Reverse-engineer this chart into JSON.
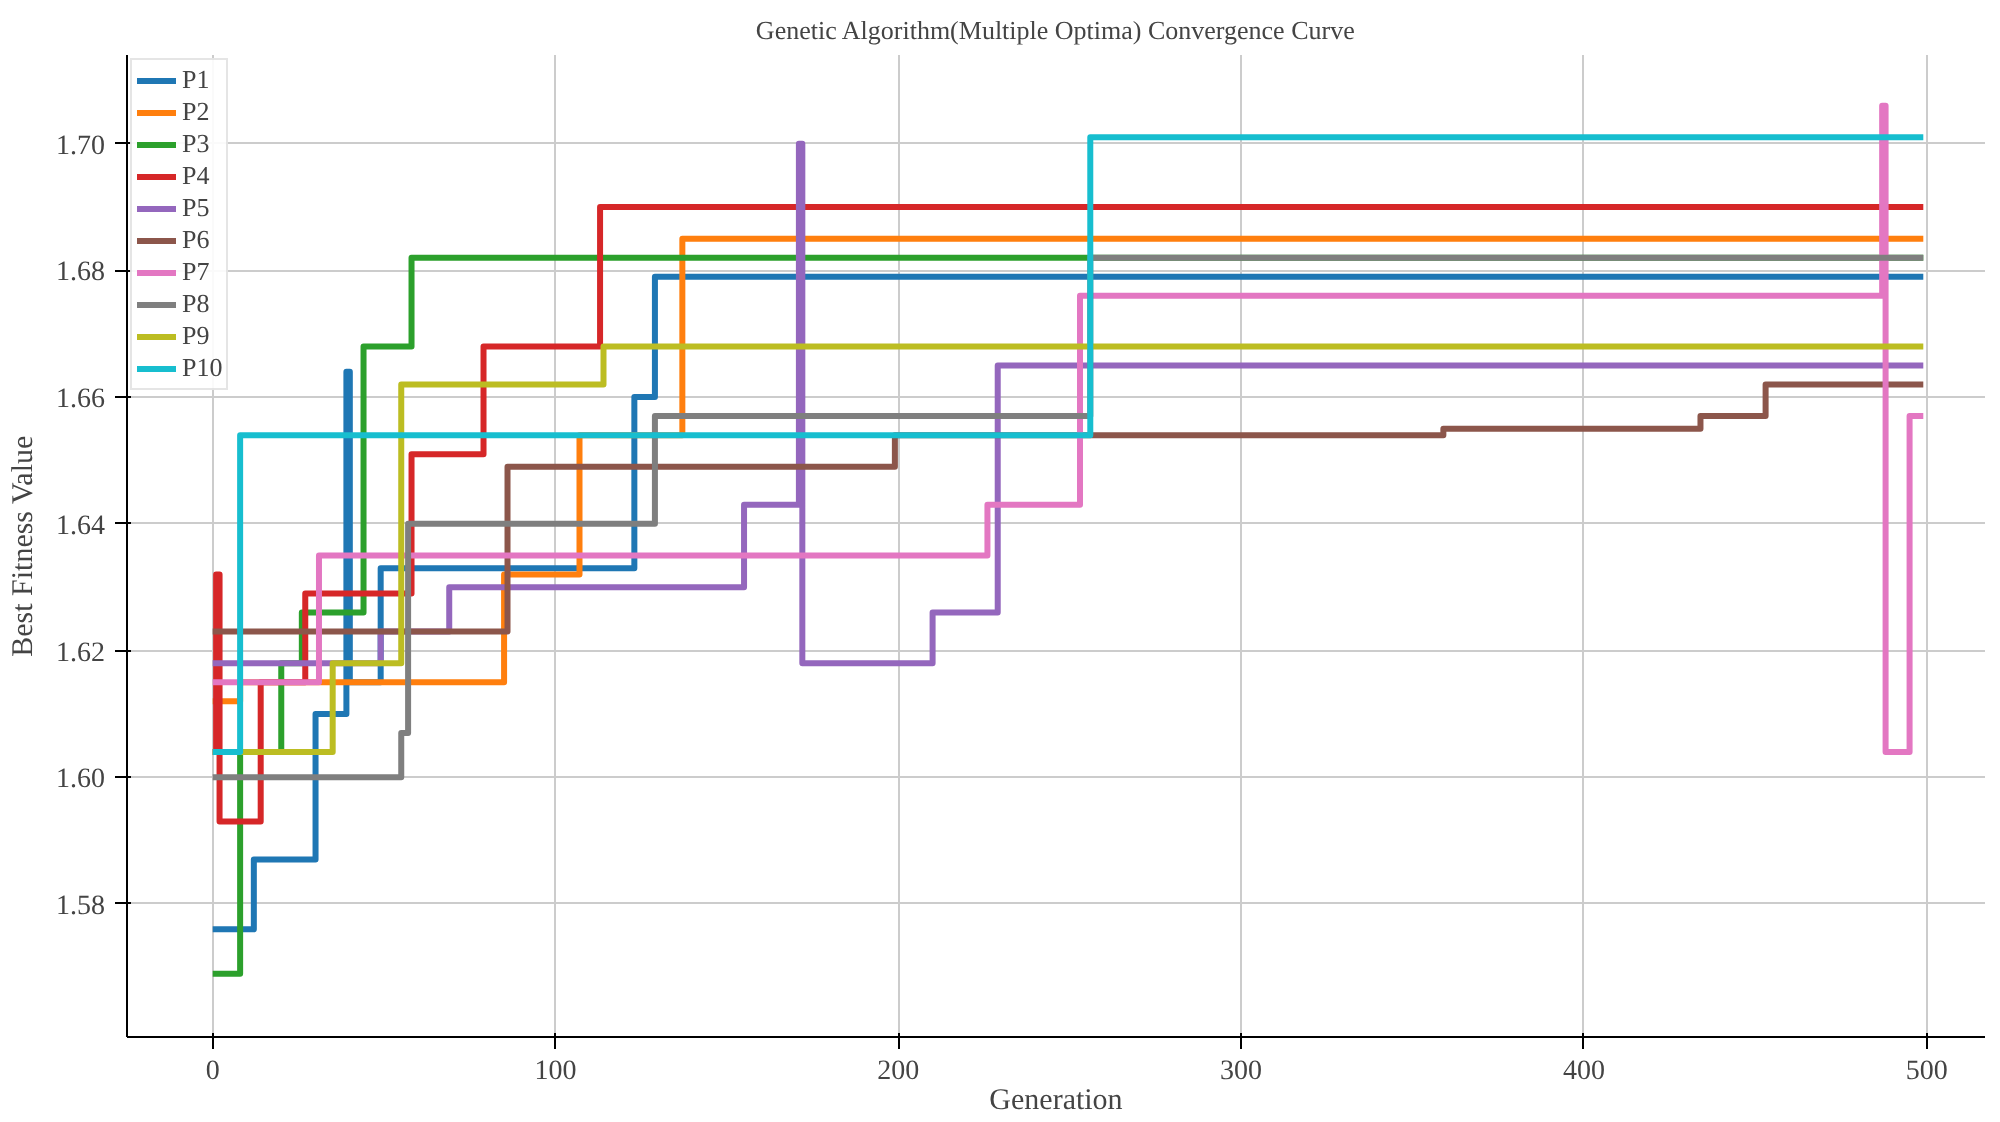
{
  "chart_data": {
    "type": "step",
    "title": "Genetic Algorithm(Multiple Optima) Convergence Curve",
    "xlabel": "Generation",
    "ylabel": "Best Fitness Value",
    "xlim": [
      -25,
      517
    ],
    "ylim": [
      1.559,
      1.714
    ],
    "xticks": [
      0,
      100,
      200,
      300,
      400,
      500
    ],
    "yticks": [
      {
        "value": 1.58,
        "label": "1.58"
      },
      {
        "value": 1.6,
        "label": "1.60"
      },
      {
        "value": 1.62,
        "label": "1.62"
      },
      {
        "value": 1.64,
        "label": "1.64"
      },
      {
        "value": 1.66,
        "label": "1.66"
      },
      {
        "value": 1.68,
        "label": "1.68"
      },
      {
        "value": 1.7,
        "label": "1.70"
      }
    ],
    "grid": true,
    "legend": "top left",
    "line_style": "solid",
    "series": [
      {
        "name": "P1",
        "color": "#1f77b4",
        "x": [
          0,
          12,
          30,
          39,
          40,
          49,
          123,
          129,
          499
        ],
        "values": [
          1.576,
          1.587,
          1.61,
          1.664,
          1.615,
          1.633,
          1.66,
          1.679,
          1.679
        ]
      },
      {
        "name": "P2",
        "color": "#ff7f0e",
        "x": [
          0,
          8,
          85,
          107,
          137,
          499
        ],
        "values": [
          1.612,
          1.615,
          1.632,
          1.654,
          1.685,
          1.685
        ]
      },
      {
        "name": "P3",
        "color": "#2ca02c",
        "x": [
          0,
          8,
          20,
          26,
          44,
          58,
          499
        ],
        "values": [
          1.569,
          1.604,
          1.618,
          1.626,
          1.668,
          1.682,
          1.682
        ]
      },
      {
        "name": "P4",
        "color": "#d62728",
        "x": [
          0,
          1,
          2,
          14,
          27,
          58,
          79,
          113,
          499
        ],
        "values": [
          1.604,
          1.632,
          1.593,
          1.615,
          1.629,
          1.651,
          1.668,
          1.69,
          1.69
        ]
      },
      {
        "name": "P5",
        "color": "#9467bd",
        "x": [
          0,
          49,
          69,
          155,
          171,
          172,
          210,
          229,
          499
        ],
        "values": [
          1.618,
          1.623,
          1.63,
          1.643,
          1.7,
          1.618,
          1.626,
          1.665,
          1.665
        ]
      },
      {
        "name": "P6",
        "color": "#8c564b",
        "x": [
          0,
          86,
          199,
          359,
          434,
          453,
          499
        ],
        "values": [
          1.623,
          1.649,
          1.654,
          1.655,
          1.657,
          1.662,
          1.662
        ]
      },
      {
        "name": "P7",
        "color": "#e377c2",
        "x": [
          0,
          31,
          226,
          253,
          487,
          488,
          495,
          499
        ],
        "values": [
          1.615,
          1.635,
          1.643,
          1.676,
          1.706,
          1.604,
          1.657,
          1.657
        ]
      },
      {
        "name": "P8",
        "color": "#7f7f7f",
        "x": [
          0,
          55,
          57,
          129,
          256,
          499
        ],
        "values": [
          1.6,
          1.607,
          1.64,
          1.657,
          1.682,
          1.682
        ]
      },
      {
        "name": "P9",
        "color": "#bcbd22",
        "x": [
          0,
          35,
          55,
          114,
          499
        ],
        "values": [
          1.604,
          1.618,
          1.662,
          1.668,
          1.668
        ]
      },
      {
        "name": "P10",
        "color": "#17becf",
        "x": [
          0,
          8,
          256,
          499
        ],
        "values": [
          1.604,
          1.654,
          1.701,
          1.701
        ]
      }
    ]
  }
}
